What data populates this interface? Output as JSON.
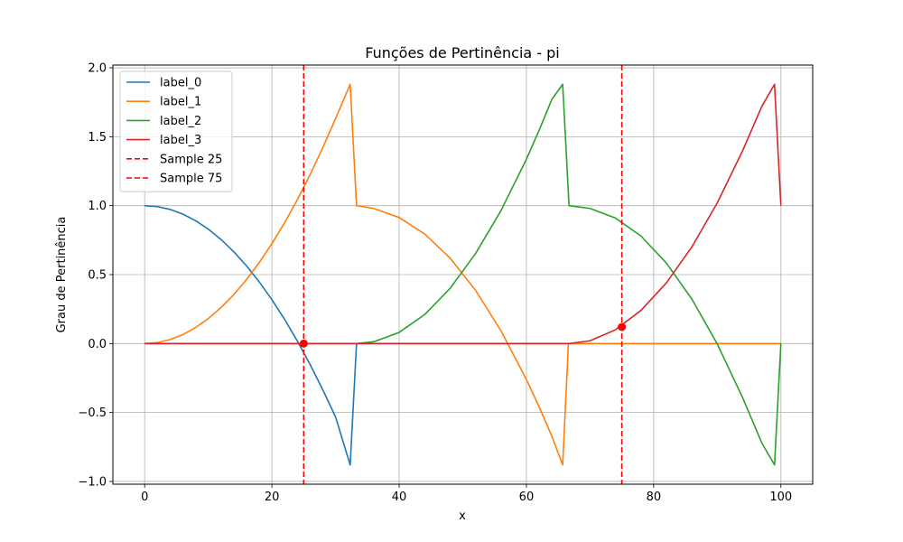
{
  "chart_data": {
    "type": "line",
    "title": "Funções de Pertinência - pi",
    "xlabel": "x",
    "ylabel": "Grau de Pertinência",
    "xlim": [
      -5,
      105
    ],
    "ylim": [
      -1.02,
      2.02
    ],
    "x_ticks": [
      0,
      20,
      40,
      60,
      80,
      100
    ],
    "x_tick_labels": [
      "0",
      "20",
      "40",
      "60",
      "80",
      "100"
    ],
    "y_ticks": [
      -1.0,
      -0.5,
      0.0,
      0.5,
      1.0,
      1.5,
      2.0
    ],
    "y_tick_labels": [
      "−1.0",
      "−0.5",
      "0.0",
      "0.5",
      "1.0",
      "1.5",
      "2.0"
    ],
    "grid": true,
    "legend_position": "top-left",
    "series": [
      {
        "name": "label_0",
        "color": "#1f77b4",
        "x": [
          0,
          2,
          4,
          6,
          8,
          10,
          12,
          14,
          16,
          18,
          20,
          22,
          24,
          26,
          28,
          30,
          32.3,
          33.3,
          34,
          40,
          50,
          60,
          70,
          80,
          90,
          100
        ],
        "y": [
          1.0,
          0.993,
          0.973,
          0.939,
          0.891,
          0.83,
          0.755,
          0.666,
          0.564,
          0.448,
          0.318,
          0.175,
          0.018,
          -0.152,
          -0.336,
          -0.532,
          -0.88,
          0.0,
          0.0,
          0.0,
          0.0,
          0.0,
          0.0,
          0.0,
          0.0,
          0.0
        ]
      },
      {
        "name": "label_1",
        "color": "#ff7f0e",
        "x": [
          0,
          2,
          4,
          6,
          8,
          10,
          12,
          14,
          16,
          18,
          20,
          22,
          24,
          26,
          28,
          30,
          32.3,
          33.3,
          36,
          40,
          44,
          48,
          52,
          56,
          60,
          62,
          64,
          65.7,
          66.6,
          70,
          80,
          90,
          100
        ],
        "y": [
          0.0,
          0.007,
          0.029,
          0.065,
          0.116,
          0.181,
          0.261,
          0.355,
          0.464,
          0.587,
          0.725,
          0.877,
          1.044,
          1.225,
          1.421,
          1.631,
          1.88,
          1.0,
          0.98,
          0.914,
          0.795,
          0.62,
          0.387,
          0.093,
          -0.261,
          -0.459,
          -0.672,
          -0.88,
          0.0,
          0.0,
          0.0,
          0.0,
          0.0
        ]
      },
      {
        "name": "label_2",
        "color": "#2ca02c",
        "x": [
          0,
          20,
          33.3,
          36,
          40,
          44,
          48,
          52,
          56,
          60,
          62,
          64,
          65.7,
          66.7,
          70,
          74,
          78,
          82,
          86,
          90,
          94,
          97,
          99,
          100
        ],
        "y": [
          0.0,
          0.0,
          0.0,
          0.013,
          0.081,
          0.21,
          0.4,
          0.652,
          0.964,
          1.337,
          1.547,
          1.771,
          1.88,
          1.0,
          0.98,
          0.91,
          0.78,
          0.584,
          0.323,
          -0.003,
          -0.394,
          -0.721,
          -0.88,
          0.0
        ]
      },
      {
        "name": "label_3",
        "color": "#d62728",
        "x": [
          0,
          20,
          40,
          60,
          66.7,
          70,
          74,
          78,
          82,
          86,
          90,
          94,
          97,
          99,
          100
        ],
        "y": [
          0.0,
          0.0,
          0.0,
          0.0,
          0.0,
          0.02,
          0.1,
          0.24,
          0.44,
          0.7,
          1.02,
          1.4,
          1.72,
          1.88,
          1.0
        ]
      }
    ],
    "vertical_lines": [
      {
        "name": "Sample 25",
        "x": 25,
        "color": "#ff0000",
        "style": "dashed"
      },
      {
        "name": "Sample 75",
        "x": 75,
        "color": "#ff0000",
        "style": "dashed"
      }
    ],
    "sample_points": [
      {
        "x": 25,
        "y": 0.0,
        "color": "#ff0000"
      },
      {
        "x": 75,
        "y": 0.12,
        "color": "#ff0000"
      }
    ]
  }
}
